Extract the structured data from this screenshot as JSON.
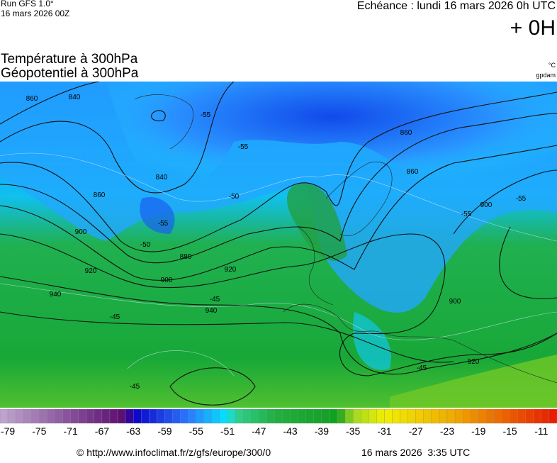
{
  "header": {
    "run": "Run GFS 1.0°",
    "run_date": "16 mars 2026 00Z",
    "echeance": "Echéance : lundi 16 mars 2026 0h UTC",
    "offset": "+ 0H",
    "title1": "Température à 300hPa",
    "title2": "Géopotentiel à 300hPa",
    "unit_temp": "°C",
    "unit_geo": "gpdam"
  },
  "map": {
    "contour_labels": [
      "860",
      "840",
      "840",
      "860",
      "880",
      "900",
      "920",
      "940",
      "940",
      "920",
      "900",
      "860",
      "860",
      "900",
      "920",
      "900",
      "-55",
      "-55",
      "-55",
      "-50",
      "-50",
      "-45",
      "-45",
      "-45",
      "-55",
      "-55",
      "-45"
    ]
  },
  "colorbar": {
    "lim": [
      -80,
      -9
    ],
    "ticks": [
      -79,
      -75,
      -71,
      -67,
      -63,
      -59,
      -55,
      -51,
      -47,
      -43,
      -39,
      -35,
      -31,
      -27,
      -23,
      -19,
      -15,
      -11
    ],
    "stops": [
      [
        -80,
        "#c0a8d0"
      ],
      [
        -64,
        "#5a0a70"
      ],
      [
        -63,
        "#0a00c8"
      ],
      [
        -56,
        "#2a78ff"
      ],
      [
        -51,
        "#00e8ff"
      ],
      [
        -50,
        "#30d090"
      ],
      [
        -45,
        "#20b040"
      ],
      [
        -37,
        "#10a020"
      ],
      [
        -35,
        "#a0d820"
      ],
      [
        -31,
        "#f0f000"
      ],
      [
        -22,
        "#f0a800"
      ],
      [
        -9,
        "#e81800"
      ]
    ]
  },
  "footer": {
    "url": "© http://www.infoclimat.fr/z/gfs/europe/300/0",
    "time": "16 mars 2026  3:35 UTC"
  }
}
